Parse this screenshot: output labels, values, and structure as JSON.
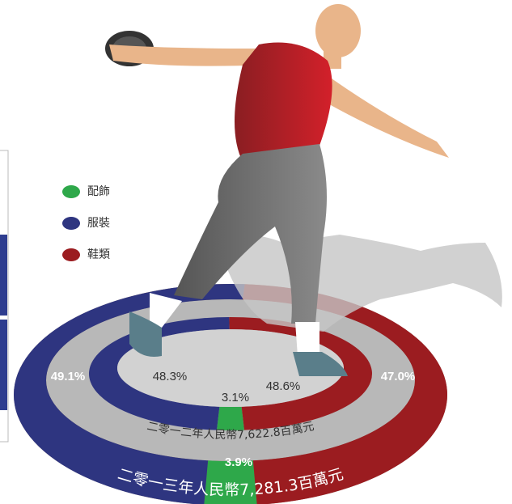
{
  "chart_data": [
    {
      "type": "pie",
      "title": "二零一三年人民幣7,281.3百萬元",
      "categories": [
        "配飾",
        "服裝",
        "鞋類"
      ],
      "values": [
        3.9,
        49.1,
        47.0
      ],
      "value_labels": [
        "3.9%",
        "49.1%",
        "47.0%"
      ],
      "colors": [
        "#2ea84a",
        "#2e3580",
        "#9b1c20"
      ]
    },
    {
      "type": "pie",
      "title": "二零一二年人民幣7,622.8百萬元",
      "categories": [
        "配飾",
        "服裝",
        "鞋類"
      ],
      "values": [
        3.1,
        48.3,
        48.6
      ],
      "value_labels": [
        "3.1%",
        "48.3%",
        "48.6%"
      ],
      "colors": [
        "#2ea84a",
        "#2e3580",
        "#9b1c20"
      ]
    }
  ]
}
